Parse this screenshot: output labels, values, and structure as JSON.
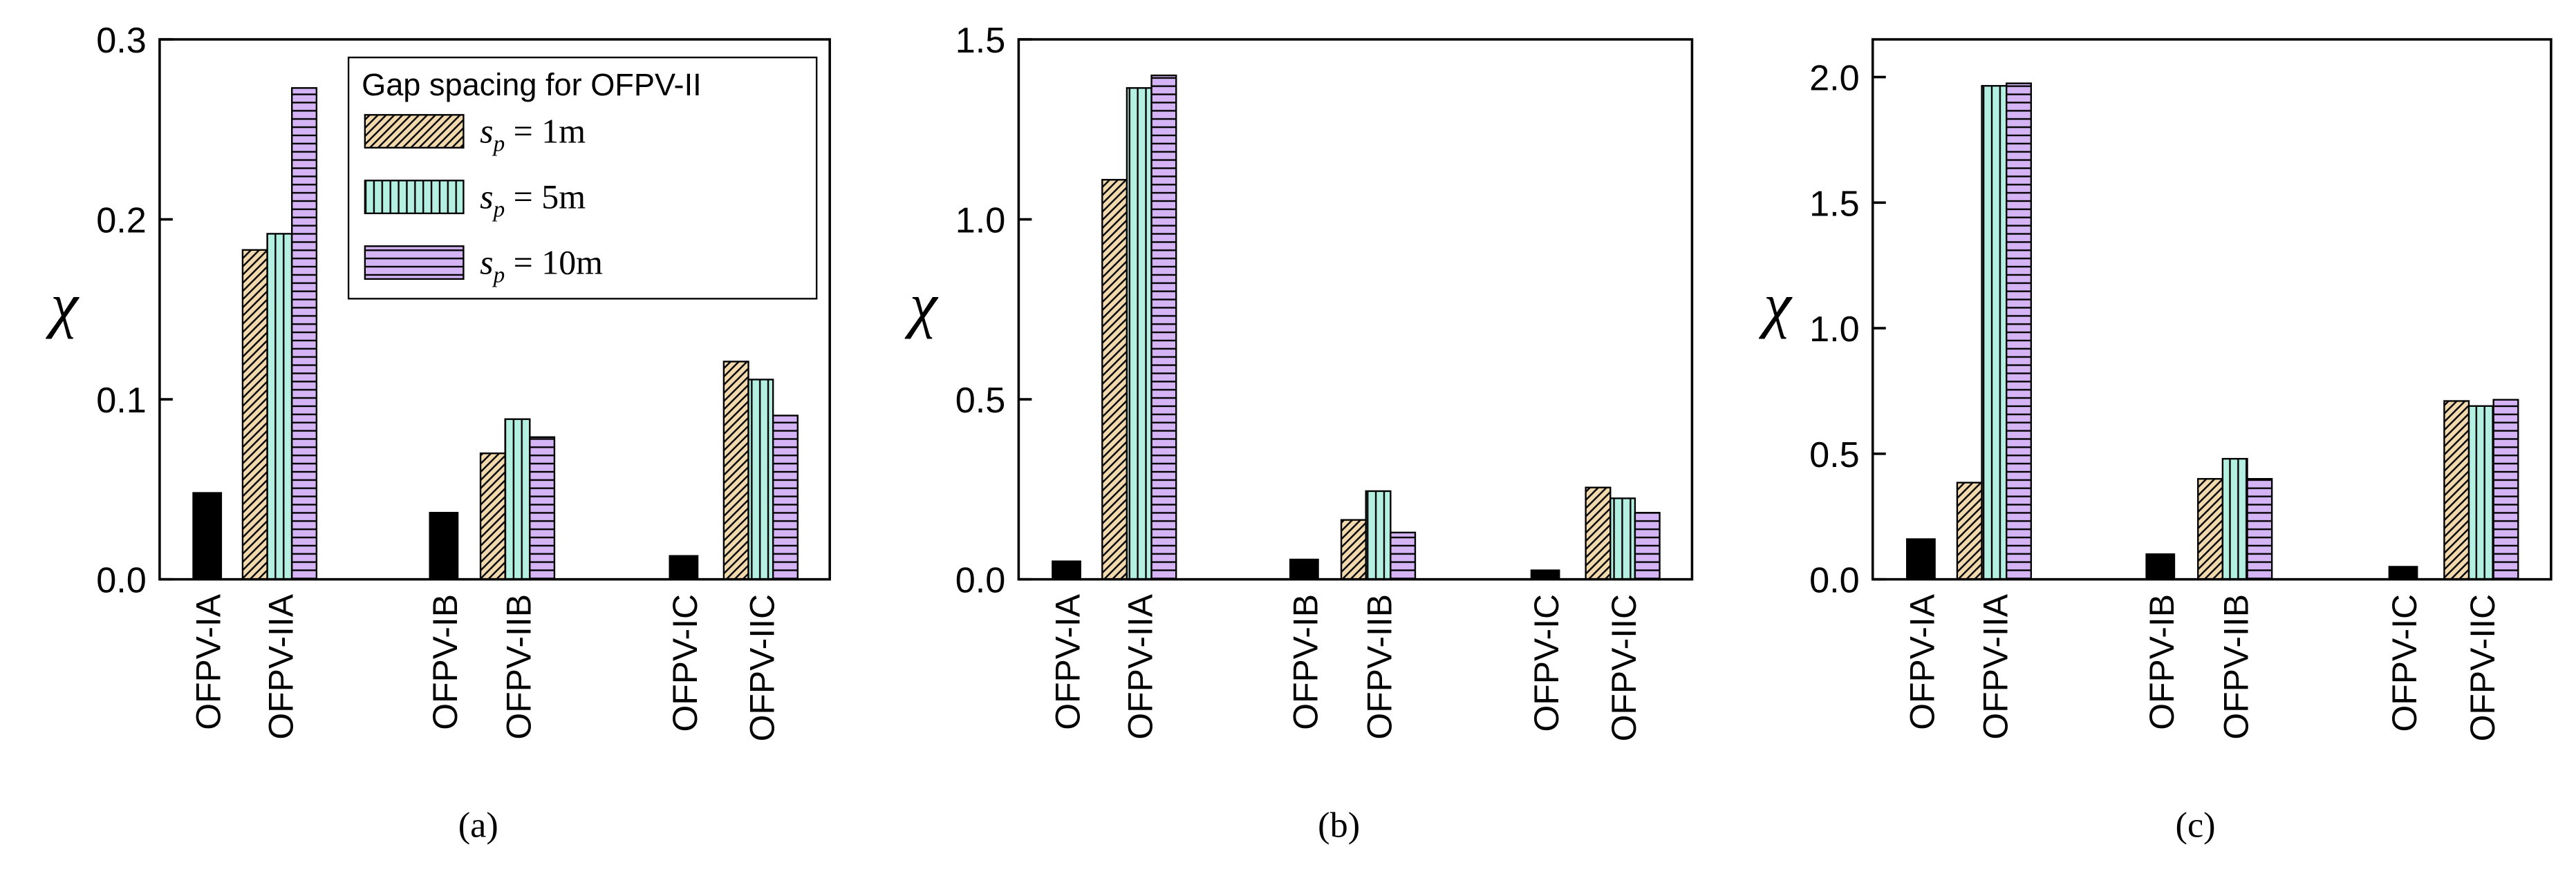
{
  "chart_data": [
    {
      "type": "bar",
      "caption": "(a)",
      "ylabel": "χ",
      "categories": [
        "OFPV-IA",
        "OFPV-IIA",
        "OFPV-IB",
        "OFPV-IIB",
        "OFPV-IC",
        "OFPV-IIC"
      ],
      "legend_title": "Gap spacing for OFPV-II",
      "legend": "upper right",
      "series": [
        {
          "color": "#000000",
          "pattern": "solid",
          "values": [
            0.048,
            null,
            0.037,
            null,
            0.013,
            null
          ]
        },
        {
          "name": "sp = 1m",
          "color": "#f2d9ad",
          "pattern": "diagonal",
          "values": [
            null,
            0.183,
            null,
            0.07,
            null,
            0.121
          ]
        },
        {
          "name": "sp = 5m",
          "color": "#b4f0e2",
          "pattern": "vertical",
          "values": [
            null,
            0.192,
            null,
            0.089,
            null,
            0.111
          ]
        },
        {
          "name": "sp = 10m",
          "color": "#d4b4f4",
          "pattern": "horizontal",
          "values": [
            null,
            0.273,
            null,
            0.079,
            null,
            0.091
          ]
        }
      ],
      "ylim": [
        0,
        0.3
      ],
      "yticks": [
        {
          "value": 0,
          "label": "0.0"
        },
        0.1,
        0.2,
        0.3
      ]
    },
    {
      "type": "bar",
      "caption": "(b)",
      "ylabel": "χ",
      "categories": [
        "OFPV-IA",
        "OFPV-IIA",
        "OFPV-IB",
        "OFPV-IIB",
        "OFPV-IC",
        "OFPV-IIC"
      ],
      "series": [
        {
          "color": "#000000",
          "pattern": "solid",
          "values": [
            0.05,
            null,
            0.055,
            null,
            0.025,
            null
          ]
        },
        {
          "color": "#f2d9ad",
          "pattern": "diagonal",
          "values": [
            null,
            1.11,
            null,
            0.165,
            null,
            0.255
          ]
        },
        {
          "color": "#b4f0e2",
          "pattern": "vertical",
          "values": [
            null,
            1.365,
            null,
            0.245,
            null,
            0.225
          ]
        },
        {
          "color": "#d4b4f4",
          "pattern": "horizontal",
          "values": [
            null,
            1.4,
            null,
            0.13,
            null,
            0.185
          ]
        }
      ],
      "ylim": [
        0,
        1.5
      ],
      "yticks": [
        {
          "value": 0,
          "label": "0.0"
        },
        0.5,
        {
          "value": 1,
          "label": "1.0"
        },
        1.5
      ]
    },
    {
      "type": "bar",
      "caption": "(c)",
      "ylabel": "χ",
      "categories": [
        "OFPV-IA",
        "OFPV-IIA",
        "OFPV-IB",
        "OFPV-IIB",
        "OFPV-IC",
        "OFPV-IIC"
      ],
      "series": [
        {
          "color": "#000000",
          "pattern": "solid",
          "values": [
            0.16,
            null,
            0.1,
            null,
            0.05,
            null
          ]
        },
        {
          "color": "#f2d9ad",
          "pattern": "diagonal",
          "values": [
            null,
            0.385,
            null,
            0.4,
            null,
            0.71
          ]
        },
        {
          "color": "#b4f0e2",
          "pattern": "vertical",
          "values": [
            null,
            1.965,
            null,
            0.48,
            null,
            0.69
          ]
        },
        {
          "color": "#d4b4f4",
          "pattern": "horizontal",
          "values": [
            null,
            1.975,
            null,
            0.4,
            null,
            0.715
          ]
        }
      ],
      "ylim": [
        0,
        2.15
      ],
      "yticks": [
        {
          "value": 0,
          "label": "0.0"
        },
        0.5,
        {
          "value": 1,
          "label": "1.0"
        },
        1.5,
        {
          "value": 2,
          "label": "2.0"
        }
      ]
    }
  ]
}
